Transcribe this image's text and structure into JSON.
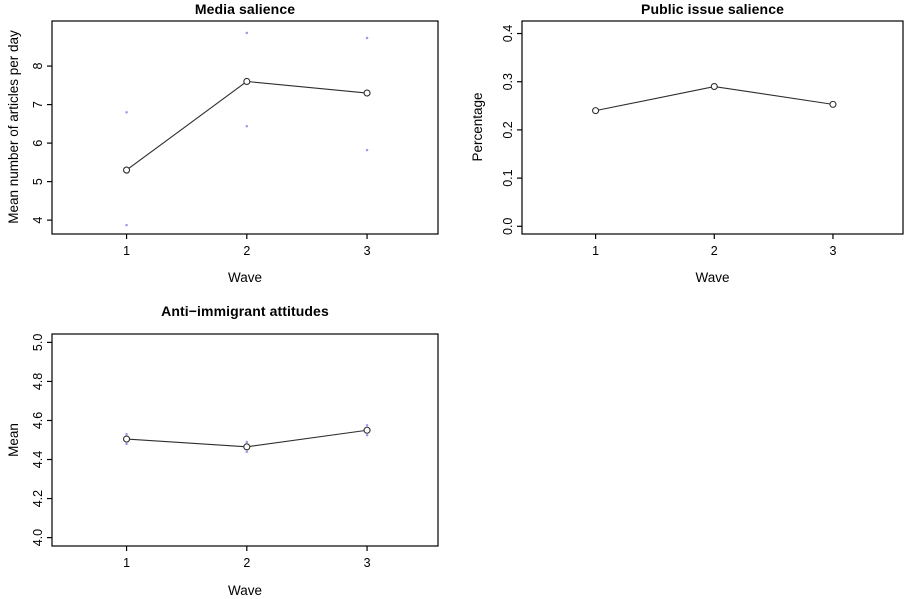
{
  "figure": {
    "background": "#ffffff",
    "axis_color": "#000000",
    "line_color": "#2e2e2e",
    "point_fill": "#ffffff",
    "ci_color": "#9b9bea"
  },
  "chart_data": [
    {
      "type": "line",
      "title": "Media salience",
      "xlabel": "Wave",
      "ylabel": "Mean number of articles per day",
      "categories": [
        "1",
        "2",
        "3"
      ],
      "x": [
        1,
        2,
        3
      ],
      "values": [
        5.3,
        7.6,
        7.3
      ],
      "ci_upper": [
        6.8,
        8.86,
        8.73
      ],
      "ci_lower": [
        3.87,
        6.44,
        5.82
      ],
      "xlim": [
        0.38,
        3.59
      ],
      "ylim": [
        3.64,
        9.17
      ],
      "yticks": [
        4,
        5,
        6,
        7,
        8
      ],
      "ytick_labels": [
        "4",
        "5",
        "6",
        "7",
        "8"
      ],
      "grid": false,
      "legend": null,
      "marker": "open-circle"
    },
    {
      "type": "line",
      "title": "Public issue salience",
      "xlabel": "Wave",
      "ylabel": "Percentage",
      "categories": [
        "1",
        "2",
        "3"
      ],
      "x": [
        1,
        2,
        3
      ],
      "values": [
        0.24,
        0.29,
        0.253
      ],
      "xlim": [
        0.38,
        3.59
      ],
      "ylim": [
        -0.016,
        0.426
      ],
      "yticks": [
        0.0,
        0.1,
        0.2,
        0.3,
        0.4
      ],
      "ytick_labels": [
        "0.0",
        "0.1",
        "0.2",
        "0.3",
        "0.4"
      ],
      "grid": false,
      "legend": null,
      "marker": "open-circle"
    },
    {
      "type": "line",
      "title": "Anti−immigrant attitudes",
      "xlabel": "Wave",
      "ylabel": "Mean",
      "categories": [
        "1",
        "2",
        "3"
      ],
      "x": [
        1,
        2,
        3
      ],
      "values": [
        4.505,
        4.465,
        4.55
      ],
      "ci_upper": [
        4.53,
        4.49,
        4.575
      ],
      "ci_lower": [
        4.48,
        4.44,
        4.525
      ],
      "xlim": [
        0.38,
        3.59
      ],
      "ylim": [
        3.957,
        5.043
      ],
      "yticks": [
        4.0,
        4.2,
        4.4,
        4.6,
        4.8,
        5.0
      ],
      "ytick_labels": [
        "4.0",
        "4.2",
        "4.4",
        "4.6",
        "4.8",
        "5.0"
      ],
      "grid": false,
      "legend": null,
      "marker": "open-circle"
    }
  ]
}
